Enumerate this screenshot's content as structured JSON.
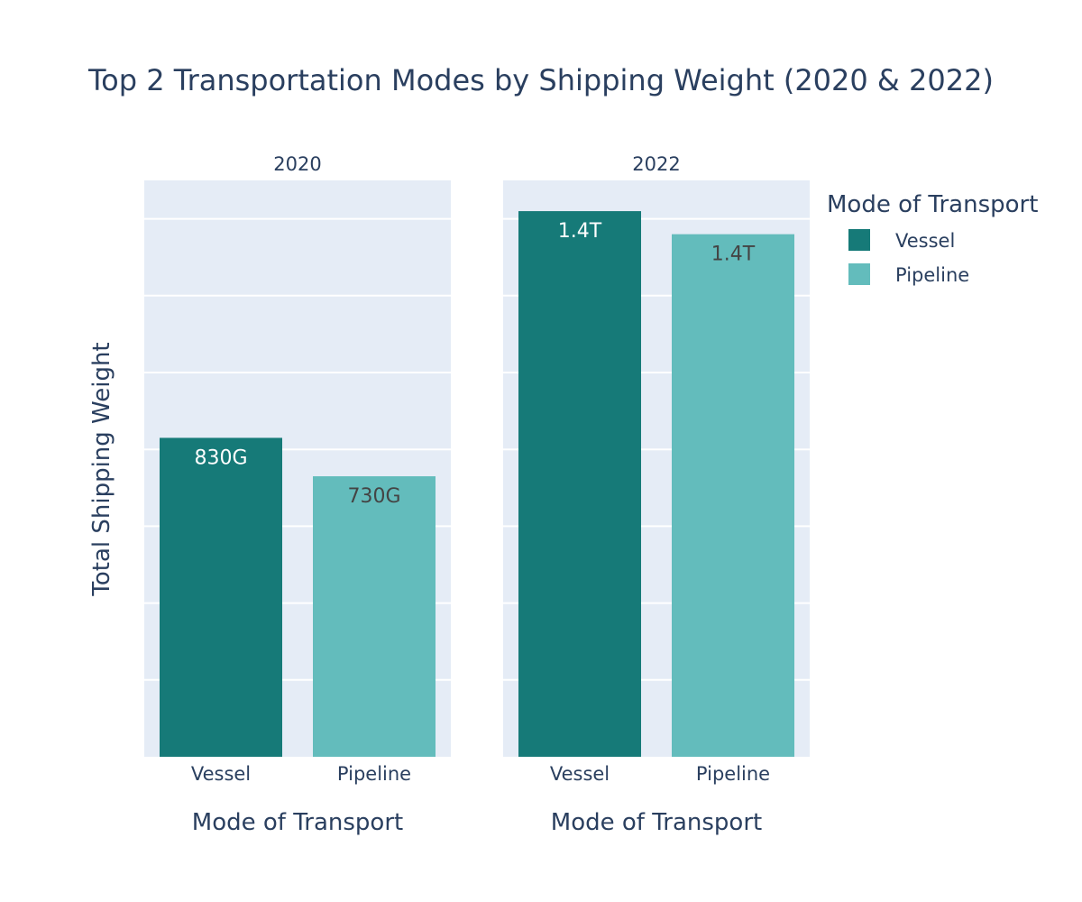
{
  "chart_data": {
    "type": "bar",
    "title": "Top 2 Transportation Modes by Shipping Weight (2020 & 2022)",
    "ylabel": "Total Shipping Weight",
    "xlabel": "Mode of Transport",
    "ylim": [
      0,
      1.5
    ],
    "y_unit": "trillion",
    "grid": true,
    "legend": {
      "title": "Mode of Transport",
      "position": "top-right",
      "entries": [
        {
          "name": "Vessel",
          "color": "#167a78"
        },
        {
          "name": "Pipeline",
          "color": "#63bcbc"
        }
      ]
    },
    "panels": [
      {
        "title": "2020",
        "categories": [
          "Vessel",
          "Pipeline"
        ],
        "values": [
          0.83,
          0.73
        ],
        "labels": [
          "830G",
          "730G"
        ]
      },
      {
        "title": "2022",
        "categories": [
          "Vessel",
          "Pipeline"
        ],
        "values": [
          1.42,
          1.36
        ],
        "labels": [
          "1.4T",
          "1.4T"
        ]
      }
    ]
  }
}
